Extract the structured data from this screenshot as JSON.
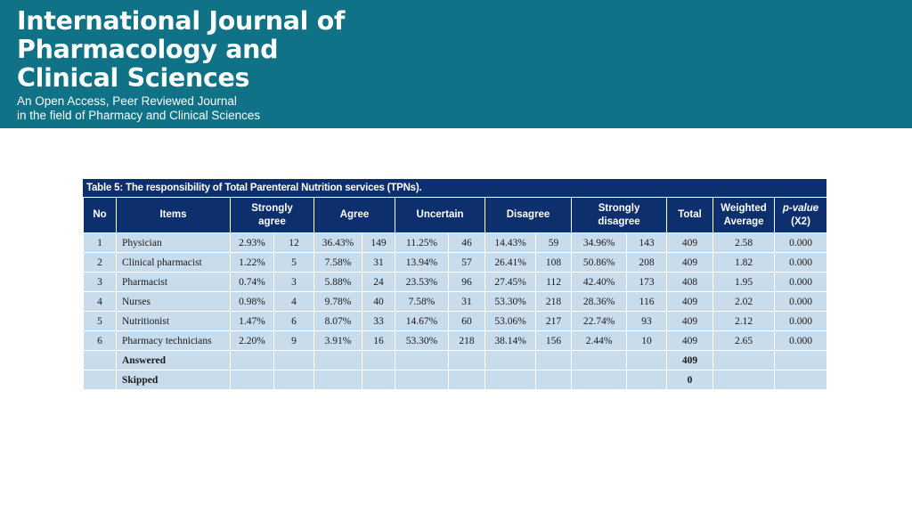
{
  "header": {
    "title_lines": [
      "International Journal of",
      "Pharmacology and",
      "Clinical Sciences"
    ],
    "subtitle_lines": [
      "An Open Access, Peer Reviewed Journal",
      "in the field of Pharmacy and Clinical Sciences"
    ]
  },
  "table": {
    "caption": "Table 5: The responsibility of Total Parenteral Nutrition services (TPNs).",
    "headers": {
      "no": "No",
      "items": "Items",
      "strongly_agree": [
        "Strongly",
        "agree"
      ],
      "agree": "Agree",
      "uncertain": "Uncertain",
      "disagree": "Disagree",
      "strongly_disagree": [
        "Strongly",
        "disagree"
      ],
      "total": "Total",
      "weighted_average": [
        "Weighted",
        "Average"
      ],
      "p_value": [
        "p-value",
        "(X2)"
      ]
    },
    "rows": [
      {
        "no": "1",
        "item": "Physician",
        "sa_pct": "2.93%",
        "sa_n": "12",
        "a_pct": "36.43%",
        "a_n": "149",
        "u_pct": "11.25%",
        "u_n": "46",
        "d_pct": "14.43%",
        "d_n": "59",
        "sd_pct": "34.96%",
        "sd_n": "143",
        "total": "409",
        "wavg": "2.58",
        "p": "0.000"
      },
      {
        "no": "2",
        "item": "Clinical pharmacist",
        "sa_pct": "1.22%",
        "sa_n": "5",
        "a_pct": "7.58%",
        "a_n": "31",
        "u_pct": "13.94%",
        "u_n": "57",
        "d_pct": "26.41%",
        "d_n": "108",
        "sd_pct": "50.86%",
        "sd_n": "208",
        "total": "409",
        "wavg": "1.82",
        "p": "0.000"
      },
      {
        "no": "3",
        "item": "Pharmacist",
        "sa_pct": "0.74%",
        "sa_n": "3",
        "a_pct": "5.88%",
        "a_n": "24",
        "u_pct": "23.53%",
        "u_n": "96",
        "d_pct": "27.45%",
        "d_n": "112",
        "sd_pct": "42.40%",
        "sd_n": "173",
        "total": "408",
        "wavg": "1.95",
        "p": "0.000"
      },
      {
        "no": "4",
        "item": "Nurses",
        "sa_pct": "0.98%",
        "sa_n": "4",
        "a_pct": "9.78%",
        "a_n": "40",
        "u_pct": "7.58%",
        "u_n": "31",
        "d_pct": "53.30%",
        "d_n": "218",
        "sd_pct": "28.36%",
        "sd_n": "116",
        "total": "409",
        "wavg": "2.02",
        "p": "0.000"
      },
      {
        "no": "5",
        "item": "Nutritionist",
        "sa_pct": "1.47%",
        "sa_n": "6",
        "a_pct": "8.07%",
        "a_n": "33",
        "u_pct": "14.67%",
        "u_n": "60",
        "d_pct": "53.06%",
        "d_n": "217",
        "sd_pct": "22.74%",
        "sd_n": "93",
        "total": "409",
        "wavg": "2.12",
        "p": "0.000"
      },
      {
        "no": "6",
        "item": "Pharmacy technicians",
        "sa_pct": "2.20%",
        "sa_n": "9",
        "a_pct": "3.91%",
        "a_n": "16",
        "u_pct": "53.30%",
        "u_n": "218",
        "d_pct": "38.14%",
        "d_n": "156",
        "sd_pct": "2.44%",
        "sd_n": "10",
        "total": "409",
        "wavg": "2.65",
        "p": "0.000"
      }
    ],
    "summary": [
      {
        "label": "Answered",
        "total": "409"
      },
      {
        "label": "Skipped",
        "total": "0"
      }
    ]
  }
}
